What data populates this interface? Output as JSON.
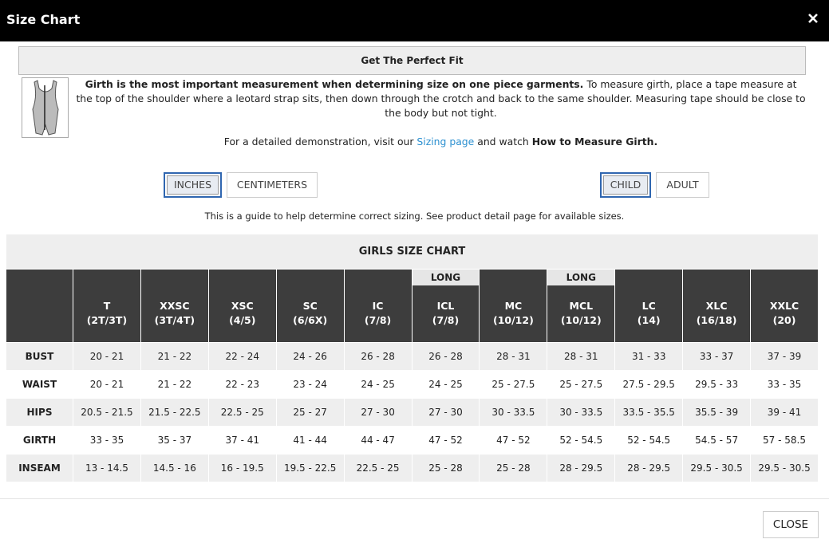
{
  "header": {
    "title": "Size Chart"
  },
  "banner": "Get The Perfect Fit",
  "intro": {
    "bold": "Girth is the most important measurement when determining size on one piece garments.",
    "text": "To measure girth, place a tape measure at the top of the shoulder where a leotard strap sits, then down through the crotch and back to the same shoulder. Measuring tape should be close to the body but not tight.",
    "demo_before": "For a detailed demonstration, visit our",
    "demo_link": "Sizing page",
    "demo_middle": "and watch",
    "demo_bold": "How to Measure Girth."
  },
  "units": [
    "INCHES",
    "CENTIMETERS"
  ],
  "groups": [
    "CHILD",
    "ADULT"
  ],
  "note": "This is a guide to help determine correct sizing. See product detail page for available sizes.",
  "table": {
    "title": "GIRLS SIZE CHART",
    "columns": [
      {
        "size": "T",
        "range": "(2T/3T)"
      },
      {
        "size": "XXSC",
        "range": "(3T/4T)"
      },
      {
        "size": "XSC",
        "range": "(4/5)"
      },
      {
        "size": "SC",
        "range": "(6/6X)"
      },
      {
        "size": "IC",
        "range": "(7/8)"
      },
      {
        "tag": "LONG",
        "size": "ICL",
        "range": "(7/8)"
      },
      {
        "size": "MC",
        "range": "(10/12)"
      },
      {
        "tag": "LONG",
        "size": "MCL",
        "range": "(10/12)"
      },
      {
        "size": "LC",
        "range": "(14)"
      },
      {
        "size": "XLC",
        "range": "(16/18)"
      },
      {
        "size": "XXLC",
        "range": "(20)"
      }
    ],
    "rows": [
      {
        "label": "BUST",
        "values": [
          "20 - 21",
          "21 - 22",
          "22 - 24",
          "24 - 26",
          "26 - 28",
          "26 - 28",
          "28 - 31",
          "28 - 31",
          "31 - 33",
          "33 - 37",
          "37 - 39"
        ]
      },
      {
        "label": "WAIST",
        "values": [
          "20 - 21",
          "21 - 22",
          "22 - 23",
          "23 - 24",
          "24 - 25",
          "24 - 25",
          "25 - 27.5",
          "25 - 27.5",
          "27.5 - 29.5",
          "29.5 - 33",
          "33 - 35"
        ]
      },
      {
        "label": "HIPS",
        "values": [
          "20.5 - 21.5",
          "21.5 - 22.5",
          "22.5 - 25",
          "25 - 27",
          "27 - 30",
          "27 - 30",
          "30 - 33.5",
          "30 - 33.5",
          "33.5 - 35.5",
          "35.5 - 39",
          "39 - 41"
        ]
      },
      {
        "label": "GIRTH",
        "values": [
          "33 - 35",
          "35 - 37",
          "37 - 41",
          "41 - 44",
          "44 - 47",
          "47 - 52",
          "47 - 52",
          "52 - 54.5",
          "52 - 54.5",
          "54.5 - 57",
          "57 - 58.5"
        ]
      },
      {
        "label": "INSEAM",
        "values": [
          "13 - 14.5",
          "14.5 - 16",
          "16 - 19.5",
          "19.5 - 22.5",
          "22.5 - 25",
          "25 - 28",
          "25 - 28",
          "28 - 29.5",
          "28 - 29.5",
          "29.5 - 30.5",
          "29.5 - 30.5"
        ]
      }
    ]
  },
  "close": "CLOSE"
}
